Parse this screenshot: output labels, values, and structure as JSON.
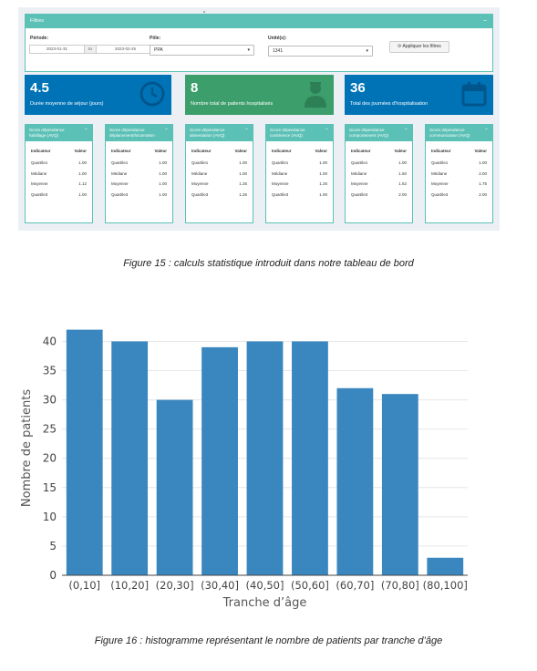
{
  "dashboard": {
    "filters": {
      "title": "Filtres",
      "collapse_icon": "minus-icon",
      "periode_label": "Période:",
      "date_start": "2023-01-31",
      "date_sep": "to",
      "date_end": "2023-02-25",
      "pole_label": "Pôle:",
      "pole_value": "PPA",
      "unite_label": "Unité(s):",
      "unite_value": "1341",
      "apply_label": "Appliquer les filtres",
      "apply_icon": "refresh-icon"
    },
    "value_boxes": [
      {
        "value": "4.5",
        "label": "Durée moyenne de séjour (jours)",
        "color": "#0073b7",
        "icon": "clock-icon"
      },
      {
        "value": "8",
        "label": "Nombre total de patients hospitalisés",
        "color": "#3c9e6a",
        "icon": "user-md-icon"
      },
      {
        "value": "36",
        "label": "Total des journées d'hospitalisation",
        "color": "#0073b7",
        "icon": "calendar-icon"
      }
    ],
    "score_boxes": [
      {
        "title": "Score dépendance habillage (AVQ)",
        "col1": "Indicateur",
        "col2": "Valeur",
        "rows": [
          [
            "Quartile1",
            "1.00"
          ],
          [
            "Médiane",
            "1.00"
          ],
          [
            "Moyenne",
            "1.12"
          ],
          [
            "Quartile3",
            "1.00"
          ]
        ]
      },
      {
        "title": "Score dépendance déplacement/locomotion",
        "col1": "Indicateur",
        "col2": "Valeur",
        "rows": [
          [
            "Quartile1",
            "1.00"
          ],
          [
            "Médiane",
            "1.00"
          ],
          [
            "Moyenne",
            "1.00"
          ],
          [
            "Quartile3",
            "1.00"
          ]
        ]
      },
      {
        "title": "Score dépendance alimentation (AVQ)",
        "col1": "Indicateur",
        "col2": "Valeur",
        "rows": [
          [
            "Quartile1",
            "1.00"
          ],
          [
            "Médiane",
            "1.00"
          ],
          [
            "Moyenne",
            "1.25"
          ],
          [
            "Quartile3",
            "1.25"
          ]
        ]
      },
      {
        "title": "Score dépendance continence (AVQ)",
        "col1": "Indicateur",
        "col2": "Valeur",
        "rows": [
          [
            "Quartile1",
            "1.00"
          ],
          [
            "Médiane",
            "1.00"
          ],
          [
            "Moyenne",
            "1.25"
          ],
          [
            "Quartile3",
            "1.00"
          ]
        ]
      },
      {
        "title": "Score dépendance comportement (AVQ)",
        "col1": "Indicateur",
        "col2": "Valeur",
        "rows": [
          [
            "Quartile1",
            "1.00"
          ],
          [
            "Médiane",
            "1.50"
          ],
          [
            "Moyenne",
            "1.62"
          ],
          [
            "Quartile3",
            "2.00"
          ]
        ]
      },
      {
        "title": "Score dépendance communication (AVQ)",
        "col1": "Indicateur",
        "col2": "Valeur",
        "rows": [
          [
            "Quartile1",
            "1.00"
          ],
          [
            "Médiane",
            "2.00"
          ],
          [
            "Moyenne",
            "1.75"
          ],
          [
            "Quartile3",
            "2.00"
          ]
        ]
      }
    ],
    "minus_symbol": "−",
    "caret_symbol": "▾"
  },
  "captions": {
    "fig15": "Figure 15 : calculs statistique introduit dans notre tableau de bord",
    "fig16": "Figure 16 : histogramme représentant le nombre de patients par tranche d’âge"
  },
  "chart_data": {
    "type": "bar",
    "categories": [
      "(0,10]",
      "(10,20]",
      "(20,30]",
      "(30,40]",
      "(40,50]",
      "(50,60]",
      "(60,70]",
      "(70,80]",
      "(80,100]"
    ],
    "values": [
      42,
      40,
      30,
      39,
      40,
      40,
      32,
      31,
      3
    ],
    "xlabel": "Tranche d’âge",
    "ylabel": "Nombre de patients",
    "ylim": [
      0,
      43.5
    ],
    "yticks": [
      0,
      5,
      10,
      15,
      20,
      25,
      30,
      35,
      40
    ],
    "grid": true,
    "bar_color": "#3a87c0"
  }
}
